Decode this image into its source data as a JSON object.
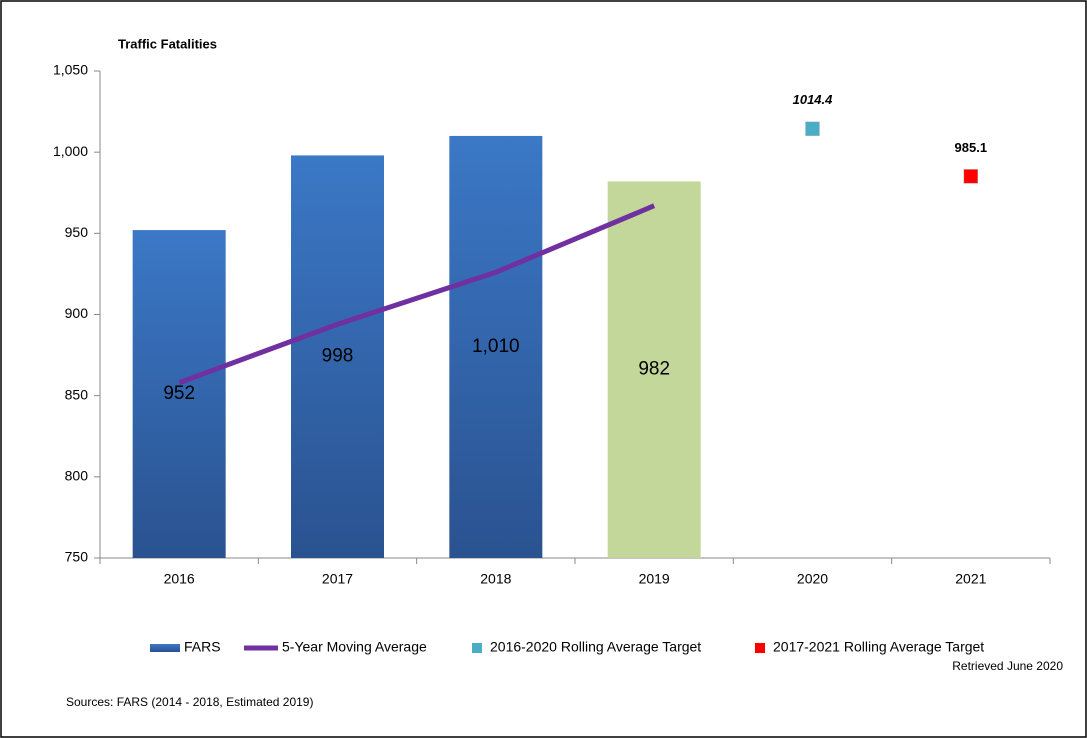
{
  "chart_data": {
    "type": "bar",
    "title": "Traffic Fatalities",
    "categories": [
      "2016",
      "2017",
      "2018",
      "2019",
      "2020",
      "2021"
    ],
    "series": [
      {
        "name": "FARS",
        "type": "bar",
        "color": "#3a72bf",
        "point_colors": [
          "#3a72bf",
          "#3a72bf",
          "#3a72bf",
          "#c4d79b",
          null,
          null
        ],
        "values": [
          952,
          998,
          1010,
          982,
          null,
          null
        ],
        "value_labels": [
          "952",
          "998",
          "1,010",
          "982",
          null,
          null
        ]
      },
      {
        "name": "5-Year Moving Average",
        "type": "line",
        "color": "#7030a0",
        "values": [
          858,
          894,
          926,
          967,
          null,
          null
        ]
      },
      {
        "name": "2016-2020 Rolling Average Target",
        "type": "marker",
        "color": "#4bacc6",
        "values": [
          null,
          null,
          null,
          null,
          1014.4,
          null
        ]
      },
      {
        "name": "2017-2021 Rolling Average Target",
        "type": "marker",
        "color": "#ff0000",
        "values": [
          null,
          null,
          null,
          null,
          null,
          985.1
        ]
      }
    ],
    "ylim": [
      750,
      1050
    ],
    "yticks": [
      750,
      800,
      850,
      900,
      950,
      {
        "value": 1000,
        "label": "1,000"
      },
      {
        "value": 1050,
        "label": "1,050"
      }
    ],
    "grid": false,
    "legend": "bottom",
    "notes": [
      "Sources: FARS (2014 - 2018, Estimated 2019)",
      "Retrieved June 2020"
    ]
  }
}
